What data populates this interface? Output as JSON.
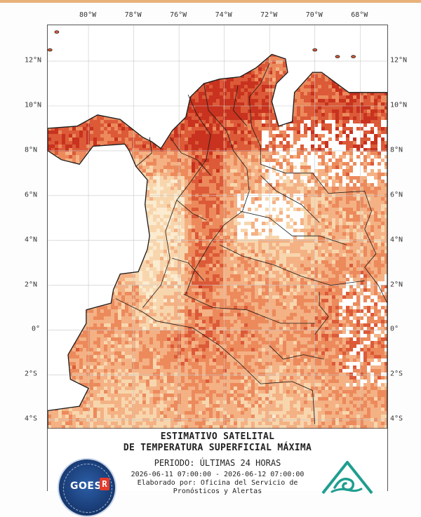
{
  "map": {
    "lon_ticks": [
      "80°W",
      "78°W",
      "76°W",
      "74°W",
      "72°W",
      "70°W",
      "68°W"
    ],
    "lat_ticks": [
      "12°N",
      "10°N",
      "8°N",
      "6°N",
      "4°N",
      "2°N",
      "0°",
      "2°S",
      "4°S"
    ],
    "extent": {
      "lon_min": -81.8,
      "lon_max": -66.8,
      "lat_min": -4.4,
      "lat_max": 13.6
    },
    "colors": {
      "very_hot": "#c8321e",
      "hot": "#dc5a38",
      "warm": "#ec8a5c",
      "mild": "#f4b184",
      "cool": "#f8d6ad",
      "coolest": "#fbebd0",
      "no_data": "#ffffff",
      "borders": "#1a1a1a",
      "grid": "#c8c8c8"
    }
  },
  "legend": {
    "title_line1": "ESTIMATIVO SATELITAL",
    "title_line2": "DE TEMPERATURA SUPERFICIAL MÁXIMA",
    "period": "PERIODO: ÚLTIMAS 24 HORAS",
    "date_range": "2026-06-11 07:00:00 - 2026-06-12 07:00:00",
    "credit_line1": "Elaborado por: Oficina del Servicio de",
    "credit_line2": "Pronósticos y Alertas"
  },
  "logos": {
    "left": {
      "name": "goes-r-logo",
      "text": "GOES",
      "mark": "R"
    },
    "right": {
      "name": "ideam-logo"
    }
  }
}
